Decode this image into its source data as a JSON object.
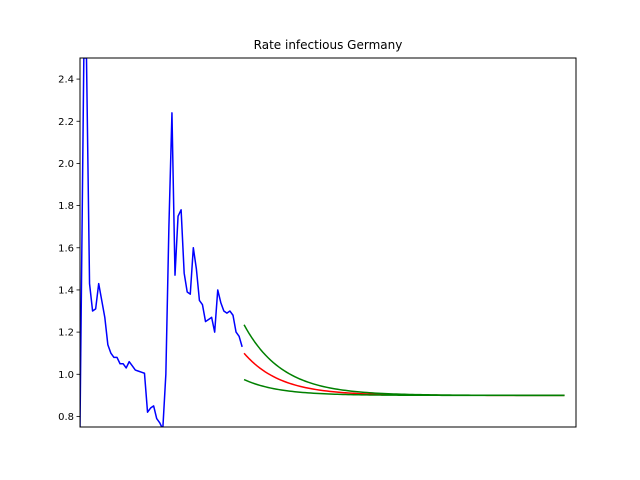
{
  "chart_data": {
    "type": "line",
    "title": "Rate infectious Germany",
    "xlabel": "",
    "ylabel": "",
    "xlim": [
      0,
      130
    ],
    "ylim": [
      0.75,
      2.5
    ],
    "yticks": [
      0.8,
      1.0,
      1.2,
      1.4,
      1.6,
      1.8,
      2.0,
      2.2,
      2.4
    ],
    "ytick_labels": [
      "0.8",
      "1.0",
      "1.2",
      "1.4",
      "1.6",
      "1.8",
      "2.0",
      "2.2",
      "2.4"
    ],
    "xticks_visible": false,
    "grid": false,
    "series": [
      {
        "color": "#0000ff",
        "x": [
          0,
          1,
          1.7,
          2.5,
          3.3,
          4.1,
          4.9,
          5.7,
          6.5,
          7.3,
          8.1,
          8.9,
          9.7,
          10.5,
          11.3,
          12.1,
          12.9,
          13.7,
          14.5,
          15.3,
          16.1,
          16.9,
          17.7,
          18.5,
          19.3,
          20.1,
          20.9,
          21.7,
          22.5,
          23.3,
          24.1,
          24.9,
          25.7,
          26.5,
          27.3,
          28.1,
          28.9,
          29.7,
          30.5,
          31.3,
          32.1,
          32.9,
          33.7,
          34.5,
          35.3,
          36.1,
          36.9,
          37.7,
          38.5,
          39.3,
          40.1,
          40.9,
          41.7,
          42.5
        ],
        "values": [
          0.75,
          2.5,
          2.5,
          1.43,
          1.3,
          1.31,
          1.43,
          1.35,
          1.27,
          1.14,
          1.1,
          1.08,
          1.08,
          1.05,
          1.05,
          1.03,
          1.06,
          1.04,
          1.02,
          1.015,
          1.01,
          1.005,
          0.82,
          0.84,
          0.85,
          0.79,
          0.77,
          0.74,
          1.0,
          1.7,
          2.24,
          1.47,
          1.75,
          1.78,
          1.48,
          1.39,
          1.38,
          1.6,
          1.5,
          1.35,
          1.33,
          1.25,
          1.26,
          1.27,
          1.2,
          1.4,
          1.34,
          1.3,
          1.29,
          1.3,
          1.28,
          1.2,
          1.18,
          1.13
        ]
      },
      {
        "color": "#ff0000",
        "x_start": 43,
        "x_end": 127,
        "start": 1.1,
        "end": 0.9,
        "rate": 0.105
      },
      {
        "color": "#008000",
        "x_start": 43,
        "x_end": 127,
        "start": 1.235,
        "end": 0.9,
        "rate": 0.1
      },
      {
        "color": "#008000",
        "x_start": 43,
        "x_end": 127,
        "start": 0.975,
        "end": 0.9,
        "rate": 0.11
      }
    ]
  }
}
